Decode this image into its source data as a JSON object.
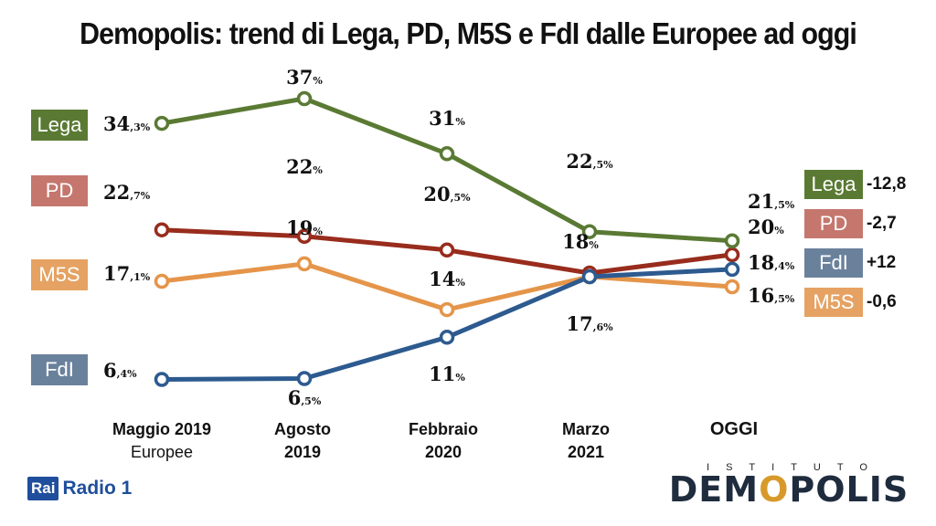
{
  "title": "Demopolis: trend di Lega, PD, M5S e FdI dalle Europee ad oggi",
  "chart_data": {
    "type": "line",
    "categories": [
      {
        "main": "Maggio 2019",
        "sub": "Europee"
      },
      {
        "main": "Agosto 2019",
        "sub": ""
      },
      {
        "main": "Febbraio 2020",
        "sub": ""
      },
      {
        "main": "Marzo 2021",
        "sub": ""
      },
      {
        "main": "OGGI",
        "sub": ""
      }
    ],
    "categories_text": {
      "c0": "Maggio 2019",
      "c0_sub": "Europee",
      "c1_line1": "Agosto",
      "c1_line2": "2019",
      "c2_line1": "Febbraio",
      "c2_line2": "2020",
      "c3_line1": "Marzo",
      "c3_line2": "2021",
      "c4": "OGGI"
    },
    "series": [
      {
        "name": "Lega",
        "color": "#5a7a34",
        "values": [
          34.3,
          37,
          31,
          22.5,
          21.5
        ],
        "labels": [
          [
            "34",
            ",3%"
          ],
          [
            "37",
            "%"
          ],
          [
            "31",
            "%"
          ],
          [
            "22",
            ",5%"
          ],
          [
            "21",
            ",5%"
          ]
        ],
        "change": "-12,8"
      },
      {
        "name": "PD",
        "color": "#982c1d",
        "values": [
          22.7,
          22,
          20.5,
          18,
          20
        ],
        "labels": [
          [
            "22",
            ",7%"
          ],
          [
            "22",
            "%"
          ],
          [
            "20",
            ",5%"
          ],
          [
            "18",
            "%"
          ],
          [
            "20",
            "%"
          ]
        ],
        "change": "-2,7"
      },
      {
        "name": "M5S",
        "color": "#e5954a",
        "values": [
          17.1,
          19,
          14,
          17.6,
          16.5
        ],
        "labels": [
          [
            "17",
            ",1%"
          ],
          [
            "19",
            "%"
          ],
          [
            "14",
            "%"
          ],
          [
            "17",
            ",6%"
          ],
          [
            "16",
            ",5%"
          ]
        ],
        "change": "-0,6"
      },
      {
        "name": "FdI",
        "color": "#2d5a8f",
        "values": [
          6.4,
          6.5,
          11,
          17.6,
          18.4
        ],
        "labels": [
          [
            "6",
            ",4%"
          ],
          [
            "6",
            ",5%"
          ],
          [
            "11",
            "%"
          ],
          null,
          [
            "18",
            ",4%"
          ]
        ],
        "change": "+12"
      }
    ],
    "box_colors": {
      "Lega": "#5a7a34",
      "PD": "#c5776e",
      "M5S": "#e5a263",
      "FdI": "#6a819c"
    }
  },
  "logos": {
    "rai": "Rai",
    "radio": "Radio 1",
    "istituto": "ISTITUTO",
    "demopolis_a": "DEM",
    "demopolis_o": "O",
    "demopolis_b": "POLIS"
  }
}
